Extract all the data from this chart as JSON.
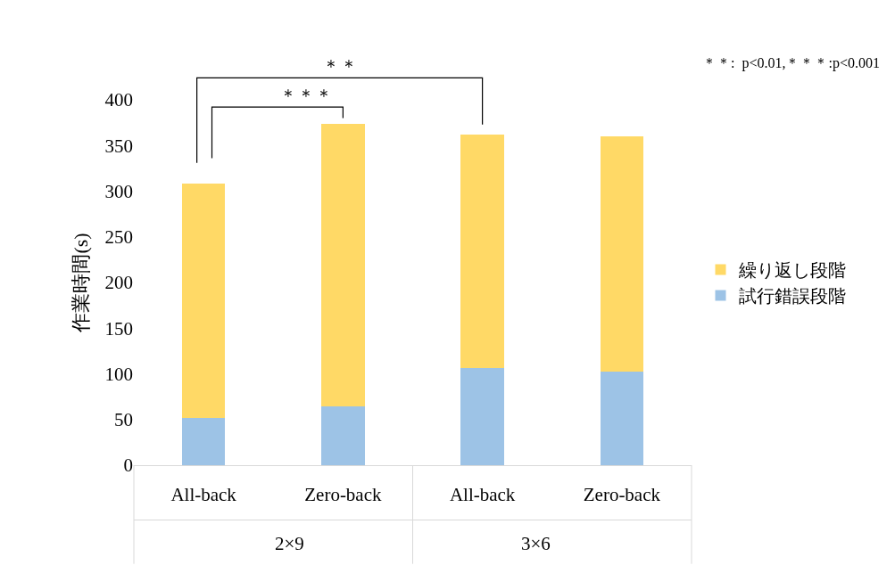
{
  "chart_data": {
    "type": "bar",
    "stacked": true,
    "ylabel": "作業時間(s)",
    "categories": [
      "All-back",
      "Zero-back",
      "All-back",
      "Zero-back"
    ],
    "series": [
      {
        "name": "試行錯誤段階",
        "color": "#9dc3e6",
        "values": [
          52,
          64,
          106,
          102
        ]
      },
      {
        "name": "繰り返し段階",
        "color": "#ffd966",
        "values": [
          256,
          310,
          256,
          258
        ]
      }
    ],
    "ylim": [
      0,
      400
    ],
    "yticks": [
      0,
      50,
      100,
      150,
      200,
      250,
      300,
      350,
      400
    ],
    "grid": false,
    "legend": "right",
    "annotations": [
      "＊＊",
      "＊＊＊",
      "＊＊:  p<0.01,＊＊＊:p<0.001",
      "2×9",
      "3×6"
    ]
  }
}
